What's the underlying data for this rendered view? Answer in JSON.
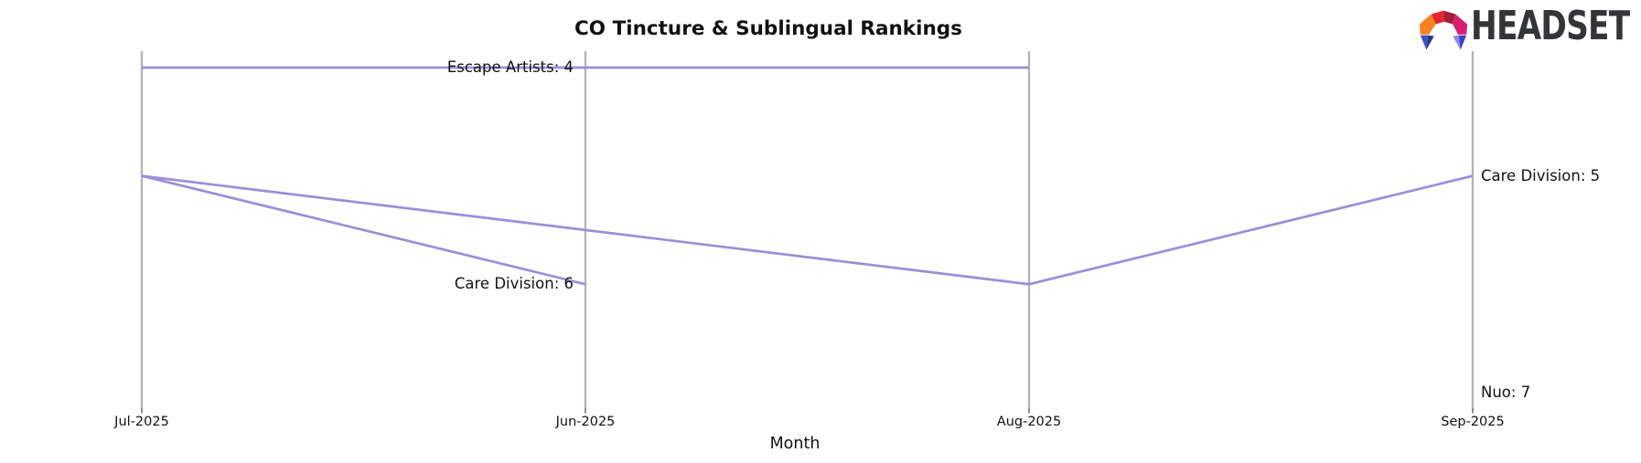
{
  "title": "CO Tincture & Sublingual Rankings",
  "logo": {
    "text": "HEADSET",
    "icon": "headset-logo-icon"
  },
  "colors": {
    "series_line": "#9b8ed8",
    "axis_line": "#b4b4b4",
    "tick_mark": "#444444",
    "text": "#111111",
    "logo_text": "#333539",
    "logo_facets": [
      "#F5821F",
      "#E8262D",
      "#A31E39",
      "#D81E72",
      "#3D50BE",
      "#273289",
      "#8F8AE8",
      "#443EC6"
    ]
  },
  "chart_data": {
    "type": "line",
    "subtype": "bump-ranking",
    "title": "CO Tincture & Sublingual Rankings",
    "xlabel": "Month",
    "categories": [
      "Jul-2025",
      "Jun-2025",
      "Aug-2025",
      "Sep-2025"
    ],
    "yaxis": {
      "inverted": true,
      "top_rank": 4,
      "bottom_rank": 7,
      "axis_label": null
    },
    "grid": false,
    "legend": "none",
    "series": [
      {
        "name": "Escape Artists",
        "points": [
          {
            "month": "Jul-2025",
            "rank": 4
          },
          {
            "month": "Aug-2025",
            "rank": 4
          }
        ],
        "label": "Escape Artists: 4",
        "label_month": "Jun-2025",
        "label_rank": 4,
        "label_side": "left"
      },
      {
        "name": "Care Division",
        "points": [
          {
            "month": "Jul-2025",
            "rank": 5
          },
          {
            "month": "Jun-2025",
            "rank": 6
          }
        ],
        "label": "Care Division: 6",
        "label_month": "Jun-2025",
        "label_rank": 6,
        "label_side": "left"
      },
      {
        "name": "Care Division",
        "points": [
          {
            "month": "Jul-2025",
            "rank": 5
          },
          {
            "month": "Aug-2025",
            "rank": 6
          },
          {
            "month": "Sep-2025",
            "rank": 5
          }
        ],
        "label": "Care Division: 5",
        "label_month": "Sep-2025",
        "label_rank": 5,
        "label_side": "right"
      },
      {
        "name": "Nuo",
        "points": [
          {
            "month": "Sep-2025",
            "rank": 7
          }
        ],
        "label": "Nuo: 7",
        "label_month": "Sep-2025",
        "label_rank": 7,
        "label_side": "right"
      }
    ]
  }
}
